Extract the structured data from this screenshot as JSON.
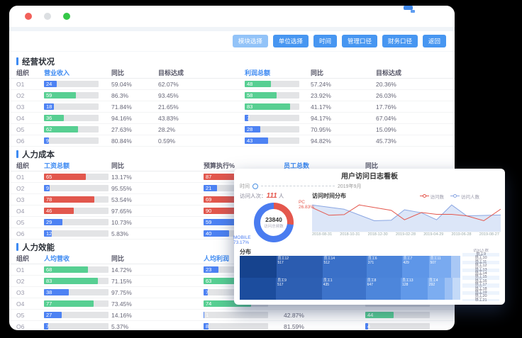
{
  "colors": {
    "accent_blue": "#4796f1",
    "accent_blue_light": "#92c3f8",
    "link_blue": "#3d8af2",
    "traffic_lights": [
      "#f2605a",
      "#dcdfe2",
      "#35c848"
    ],
    "bar_colors": {
      "green": "#57cf92",
      "blue": "#4d82f3",
      "red": "#e2574d"
    }
  },
  "toolbar": {
    "buttons": [
      "模块选择",
      "单位选择",
      "时间",
      "管理口径",
      "财务口径",
      "返回"
    ]
  },
  "sections": [
    {
      "title": "经营状况",
      "grid": "g1",
      "track": "t1",
      "columns": [
        "组织",
        "营业收入",
        "同比",
        "目标达成",
        "利润总额",
        "同比",
        "目标达成"
      ],
      "links": [
        1,
        4
      ],
      "rows": [
        [
          "O1",
          {
            "v": 24,
            "c": "blue"
          },
          "59.04%",
          "62.07%",
          {
            "v": 48,
            "c": "green"
          },
          "57.24%",
          "20.36%"
        ],
        [
          "O2",
          {
            "v": 59,
            "c": "green"
          },
          "86.3%",
          "93.45%",
          {
            "v": 58,
            "c": "green"
          },
          "23.92%",
          "26.03%"
        ],
        [
          "O3",
          {
            "v": 18,
            "c": "blue"
          },
          "71.84%",
          "21.65%",
          {
            "v": 83,
            "c": "green"
          },
          "41.17%",
          "17.76%"
        ],
        [
          "O4",
          {
            "v": 36,
            "c": "green"
          },
          "94.16%",
          "43.83%",
          {
            "v": 7,
            "c": "blue"
          },
          "94.17%",
          "67.04%"
        ],
        [
          "O5",
          {
            "v": 62,
            "c": "green"
          },
          "27.63%",
          "28.2%",
          {
            "v": 28,
            "c": "blue"
          },
          "70.95%",
          "15.09%"
        ],
        [
          "O6",
          {
            "v": 9,
            "c": "blue"
          },
          "80.84%",
          "0.59%",
          {
            "v": 43,
            "c": "blue"
          },
          "94.82%",
          "45.73%"
        ]
      ]
    },
    {
      "title": "人力成本",
      "grid": "g2",
      "track": "t2",
      "columns": [
        "组织",
        "工资总额",
        "同比",
        "预算执行%",
        "员工总数",
        "同比"
      ],
      "links": [
        1,
        4
      ],
      "rows": [
        [
          "O1",
          {
            "v": 65,
            "c": "red"
          },
          "13.17%",
          {
            "v": 87,
            "c": "red"
          },
          {
            "v": null
          },
          ""
        ],
        [
          "O2",
          {
            "v": 9,
            "c": "blue"
          },
          "95.55%",
          {
            "v": 21,
            "c": "blue"
          },
          {
            "v": null
          },
          ""
        ],
        [
          "O3",
          {
            "v": 78,
            "c": "red"
          },
          "53.54%",
          {
            "v": 69,
            "c": "red"
          },
          {
            "v": null
          },
          ""
        ],
        [
          "O4",
          {
            "v": 46,
            "c": "red"
          },
          "97.65%",
          {
            "v": 90,
            "c": "red"
          },
          {
            "v": null
          },
          ""
        ],
        [
          "O5",
          {
            "v": 29,
            "c": "blue"
          },
          "10.73%",
          {
            "v": 59,
            "c": "blue"
          },
          {
            "v": null
          },
          ""
        ],
        [
          "O6",
          {
            "v": 12,
            "c": "blue"
          },
          "5.83%",
          {
            "v": 40,
            "c": "blue"
          },
          {
            "v": null
          },
          ""
        ]
      ]
    },
    {
      "title": "人力效能",
      "grid": "g2",
      "track": "t2",
      "columns": [
        "组织",
        "人均营收",
        "同比",
        "人均利润",
        "",
        ""
      ],
      "links": [
        1,
        3
      ],
      "rows": [
        [
          "O1",
          {
            "v": 68,
            "c": "green"
          },
          "14.72%",
          {
            "v": 23,
            "c": "blue"
          },
          "",
          {
            "v": null
          }
        ],
        [
          "O2",
          {
            "v": 83,
            "c": "green"
          },
          "71.15%",
          {
            "v": 63,
            "c": "green"
          },
          "",
          {
            "v": null
          }
        ],
        [
          "O3",
          {
            "v": 38,
            "c": "blue"
          },
          "97.75%",
          {
            "v": 7,
            "c": "blue"
          },
          "",
          {
            "v": null
          }
        ],
        [
          "O4",
          {
            "v": 77,
            "c": "green"
          },
          "73.45%",
          {
            "v": 74,
            "c": "green"
          },
          "",
          {
            "v": null
          }
        ],
        [
          "O5",
          {
            "v": 27,
            "c": "blue"
          },
          "14.16%",
          {
            "v": 1,
            "c": "blue"
          },
          "42.87%",
          {
            "v": 44,
            "c": "green"
          }
        ],
        [
          "O6",
          {
            "v": 7,
            "c": "blue"
          },
          "5.37%",
          {
            "v": 8,
            "c": "blue"
          },
          "81.59%",
          {
            "v": 4,
            "c": "blue"
          }
        ]
      ]
    }
  ],
  "overlay": {
    "title": "用户访问日志看板",
    "slider": {
      "label": "时间",
      "value": "2019年9月"
    },
    "stats": {
      "visits_label": "访问人次：",
      "visits_value": "111",
      "visits_unit": "人"
    },
    "pc_line1": "PC",
    "pc_line2": "26.83%",
    "mobile_line1": "MOBILE",
    "mobile_line2": "73.17%",
    "employee_list": {
      "header": "访问人数",
      "items": [
        "员工9",
        "员工10",
        "员工11",
        "员工12",
        "员工13",
        "员工14",
        "员工15",
        "员工16",
        "员工17",
        "员工18",
        "员工19",
        "员工20",
        "员工21",
        "员工22"
      ]
    }
  },
  "chart_data": [
    {
      "type": "pie",
      "subtype": "donut",
      "center_value": "23840",
      "center_label": "访问总频数",
      "slices": [
        {
          "label": "PC",
          "value": 26.83,
          "color": "#e4574d"
        },
        {
          "label": "MOBILE",
          "value": 73.17,
          "color": "#4a7cf0"
        }
      ]
    },
    {
      "type": "line",
      "title": "访问时间分布",
      "legend_position": "top-right",
      "y_axis": "hidden",
      "ylim": [
        0,
        100
      ],
      "x_ticks": [
        "2018-08-31",
        "2018-10-31",
        "2018-12-30",
        "2019-02-28",
        "2019-04-29",
        "2019-06-28",
        "2019-08-27"
      ],
      "series": [
        {
          "name": "访问数",
          "color": "#e4574d",
          "area": false,
          "x": [
            0,
            0.09,
            0.17,
            0.25,
            0.42,
            0.49,
            0.58,
            0.66,
            0.74,
            0.82,
            0.91,
            1
          ],
          "y": [
            79,
            54,
            56,
            88,
            70,
            39,
            63,
            57,
            57,
            52,
            36,
            74
          ]
        },
        {
          "name": "访问人数",
          "color": "#8aa6e2",
          "area": true,
          "area_color": "#dce6f8",
          "x": [
            0,
            0.17,
            0.33,
            0.42,
            0.49,
            0.58,
            0.66,
            0.74,
            0.82,
            1
          ],
          "y": [
            88,
            74,
            36,
            38,
            72,
            62,
            39,
            88,
            52,
            55
          ]
        }
      ]
    },
    {
      "type": "treemap",
      "title": "分布",
      "rows": [
        [
          {
            "name": "",
            "value": "",
            "color": "#16438e",
            "w": 55
          },
          {
            "name": "员工12",
            "value": "517",
            "color": "#2b5cb0",
            "w": 70
          },
          {
            "name": "员工14",
            "value": "512",
            "color": "#3a70c8",
            "w": 67
          },
          {
            "name": "员工6",
            "value": "371",
            "color": "#4a83d9",
            "w": 53
          },
          {
            "name": "员工7",
            "value": "429",
            "color": "#5e96e8",
            "w": 40
          },
          {
            "name": "员工11",
            "value": "507",
            "color": "#79aaf0",
            "w": 33
          },
          {
            "name": "",
            "value": "",
            "color": "#a9c8f5",
            "w": 12
          }
        ],
        [
          {
            "name": "",
            "value": "",
            "color": "#1c4d9e",
            "w": 55
          },
          {
            "name": "员工9",
            "value": "517",
            "color": "#2d5fb3",
            "w": 70
          },
          {
            "name": "员工1",
            "value": "435",
            "color": "#3d73ca",
            "w": 67
          },
          {
            "name": "员工8",
            "value": "647",
            "color": "#4d86db",
            "w": 53
          },
          {
            "name": "员工13",
            "value": "128",
            "color": "#6199e9",
            "w": 40
          },
          {
            "name": "员工4",
            "value": "292",
            "color": "#7cadf1",
            "w": 25
          },
          {
            "name": "",
            "value": "",
            "color": "#9cc0f4",
            "w": 10
          },
          {
            "name": "",
            "value": "",
            "color": "#c4daf8",
            "w": 10
          }
        ]
      ]
    }
  ]
}
